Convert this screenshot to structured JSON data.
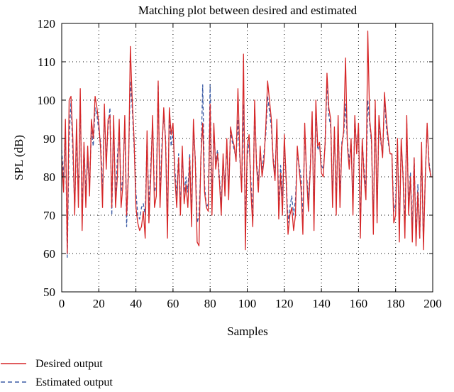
{
  "chart_data": {
    "type": "line",
    "title": "Matching plot between desired and estimated",
    "xlabel": "Samples",
    "ylabel": "SPL (dB)",
    "xlim": [
      0,
      200
    ],
    "ylim": [
      50,
      120
    ],
    "xticks": [
      0,
      20,
      40,
      60,
      80,
      100,
      120,
      140,
      160,
      180,
      200
    ],
    "yticks": [
      50,
      60,
      70,
      80,
      90,
      100,
      110,
      120
    ],
    "grid": true,
    "legend_position": "below-left",
    "series": [
      {
        "name": "Desired output",
        "color": "#d62728",
        "style": "solid",
        "x": [
          0,
          1,
          2,
          3,
          4,
          5,
          6,
          7,
          8,
          9,
          10,
          11,
          12,
          13,
          14,
          15,
          16,
          17,
          18,
          19,
          20,
          21,
          22,
          23,
          24,
          25,
          26,
          27,
          28,
          29,
          30,
          31,
          32,
          33,
          34,
          35,
          36,
          37,
          38,
          39,
          40,
          41,
          42,
          43,
          44,
          45,
          46,
          47,
          48,
          49,
          50,
          51,
          52,
          53,
          54,
          55,
          56,
          57,
          58,
          59,
          60,
          61,
          62,
          63,
          64,
          65,
          66,
          67,
          68,
          69,
          70,
          71,
          72,
          73,
          74,
          75,
          76,
          77,
          78,
          79,
          80,
          81,
          82,
          83,
          84,
          85,
          86,
          87,
          88,
          89,
          90,
          91,
          92,
          93,
          94,
          95,
          96,
          97,
          98,
          99,
          100,
          101,
          102,
          103,
          104,
          105,
          106,
          107,
          108,
          109,
          110,
          111,
          112,
          113,
          114,
          115,
          116,
          117,
          118,
          119,
          120,
          121,
          122,
          123,
          124,
          125,
          126,
          127,
          128,
          129,
          130,
          131,
          132,
          133,
          134,
          135,
          136,
          137,
          138,
          139,
          140,
          141,
          142,
          143,
          144,
          145,
          146,
          147,
          148,
          149,
          150,
          151,
          152,
          153,
          154,
          155,
          156,
          157,
          158,
          159,
          160,
          161,
          162,
          163,
          164,
          165,
          166,
          167,
          168,
          169,
          170,
          171,
          172,
          173,
          174,
          175,
          176,
          177,
          178,
          179,
          180,
          181,
          182,
          183,
          184,
          185,
          186,
          187,
          188,
          189,
          190,
          191,
          192,
          193,
          194,
          195,
          196,
          197,
          198,
          199,
          200
        ],
        "values": [
          85,
          76,
          95,
          60,
          100,
          101,
          90,
          70,
          95,
          72,
          103,
          66,
          89,
          72,
          88,
          75,
          95,
          90,
          101,
          98,
          94,
          87,
          72,
          99,
          82,
          95,
          96,
          72,
          96,
          72,
          80,
          95,
          72,
          78,
          96,
          70,
          81,
          114,
          100,
          90,
          72,
          68,
          66,
          67,
          71,
          64,
          92,
          68,
          80,
          96,
          72,
          75,
          105,
          72,
          86,
          98,
          89,
          64,
          98,
          91,
          94,
          80,
          72,
          85,
          70,
          88,
          73,
          78,
          72,
          85,
          67,
          95,
          84,
          63,
          62,
          85,
          94,
          76,
          72,
          71,
          99,
          70,
          94,
          82,
          86,
          79,
          70,
          86,
          75,
          90,
          74,
          93,
          90,
          88,
          84,
          103,
          86,
          76,
          112,
          61,
          88,
          91,
          76,
          67,
          100,
          83,
          76,
          88,
          80,
          84,
          93,
          105,
          100,
          95,
          84,
          79,
          95,
          69,
          81,
          70,
          91,
          79,
          65,
          70,
          72,
          66,
          70,
          88,
          82,
          77,
          65,
          94,
          80,
          71,
          82,
          97,
          66,
          100,
          88,
          89,
          81,
          80,
          89,
          107,
          98,
          95,
          72,
          93,
          70,
          96,
          72,
          88,
          92,
          111,
          88,
          82,
          90,
          70,
          96,
          86,
          94,
          64,
          90,
          80,
          74,
          118,
          95,
          90,
          65,
          100,
          68,
          96,
          90,
          85,
          102,
          95,
          90,
          86,
          86,
          68,
          70,
          90,
          63,
          90,
          80,
          64,
          96,
          70,
          80,
          63,
          85,
          62,
          76,
          64,
          89,
          61,
          80,
          94,
          83,
          80,
          80
        ]
      },
      {
        "name": "Estimated output",
        "color": "#3b5ba5",
        "style": "dashed",
        "x": [
          0,
          1,
          2,
          3,
          4,
          5,
          6,
          7,
          8,
          9,
          10,
          11,
          12,
          13,
          14,
          15,
          16,
          17,
          18,
          19,
          20,
          21,
          22,
          23,
          24,
          25,
          26,
          27,
          28,
          29,
          30,
          31,
          32,
          33,
          34,
          35,
          36,
          37,
          38,
          39,
          40,
          41,
          42,
          43,
          44,
          45,
          46,
          47,
          48,
          49,
          50,
          51,
          52,
          53,
          54,
          55,
          56,
          57,
          58,
          59,
          60,
          61,
          62,
          63,
          64,
          65,
          66,
          67,
          68,
          69,
          70,
          71,
          72,
          73,
          74,
          75,
          76,
          77,
          78,
          79,
          80,
          81,
          82,
          83,
          84,
          85,
          86,
          87,
          88,
          89,
          90,
          91,
          92,
          93,
          94,
          95,
          96,
          97,
          98,
          99,
          100,
          101,
          102,
          103,
          104,
          105,
          106,
          107,
          108,
          109,
          110,
          111,
          112,
          113,
          114,
          115,
          116,
          117,
          118,
          119,
          120,
          121,
          122,
          123,
          124,
          125,
          126,
          127,
          128,
          129,
          130,
          131,
          132,
          133,
          134,
          135,
          136,
          137,
          138,
          139,
          140,
          141,
          142,
          143,
          144,
          145,
          146,
          147,
          148,
          149,
          150,
          151,
          152,
          153,
          154,
          155,
          156,
          157,
          158,
          159,
          160,
          161,
          162,
          163,
          164,
          165,
          166,
          167,
          168,
          169,
          170,
          171,
          172,
          173,
          174,
          175,
          176,
          177,
          178,
          179,
          180,
          181,
          182,
          183,
          184,
          185,
          186,
          187,
          188,
          189,
          190,
          191,
          192,
          193,
          194,
          195,
          196,
          197,
          198,
          199,
          200
        ],
        "values": [
          87,
          80,
          93,
          59,
          90,
          100,
          86,
          72,
          91,
          75,
          100,
          70,
          88,
          76,
          84,
          78,
          92,
          88,
          98,
          96,
          92,
          89,
          76,
          97,
          84,
          93,
          98,
          70,
          94,
          74,
          85,
          93,
          76,
          80,
          94,
          67,
          84,
          105,
          98,
          88,
          76,
          70,
          69,
          72,
          73,
          70,
          90,
          72,
          83,
          94,
          76,
          78,
          104,
          75,
          88,
          96,
          90,
          68,
          96,
          88,
          92,
          82,
          75,
          86,
          72,
          85,
          76,
          80,
          76,
          86,
          70,
          92,
          85,
          68,
          70,
          83,
          104,
          78,
          72,
          73,
          104,
          73,
          92,
          84,
          87,
          80,
          73,
          84,
          78,
          88,
          76,
          92,
          89,
          87,
          85,
          95,
          85,
          77,
          99,
          68,
          85,
          89,
          79,
          70,
          98,
          84,
          79,
          86,
          82,
          86,
          91,
          101,
          97,
          93,
          85,
          81,
          93,
          72,
          83,
          75,
          89,
          80,
          68,
          72,
          75,
          70,
          74,
          86,
          83,
          80,
          69,
          92,
          81,
          74,
          83,
          95,
          70,
          98,
          87,
          88,
          83,
          82,
          88,
          105,
          96,
          93,
          75,
          92,
          73,
          94,
          75,
          89,
          91,
          99,
          89,
          84,
          89,
          73,
          95,
          87,
          93,
          67,
          89,
          82,
          77,
          100,
          94,
          89,
          68,
          98,
          71,
          94,
          89,
          86,
          100,
          93,
          89,
          86,
          86,
          71,
          73,
          89,
          67,
          88,
          81,
          67,
          94,
          72,
          81,
          66,
          85,
          64,
          78,
          64,
          86,
          63,
          80,
          93,
          84,
          80,
          80
        ]
      }
    ]
  }
}
